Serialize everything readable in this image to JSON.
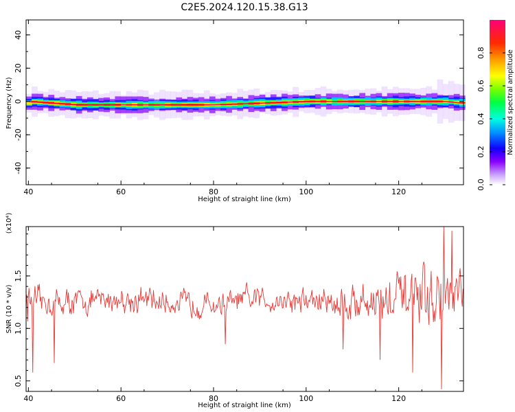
{
  "figure_title": "C2E5.2024.120.15.38.G13",
  "chart_data": [
    {
      "type": "heatmap",
      "xlabel": "Height of straight line (km)",
      "ylabel": "Frequency (Hz)",
      "xlim": [
        39.5,
        134
      ],
      "ylim": [
        -50,
        49
      ],
      "x_ticks": [
        40,
        60,
        80,
        100,
        120
      ],
      "y_ticks": [
        -40,
        -20,
        0,
        20,
        40
      ],
      "colorbar": {
        "label": "Normalized spectral amplitude",
        "range": [
          0,
          1
        ],
        "ticks": [
          "0.0",
          "0.2",
          "0.4",
          "0.6",
          "0.8"
        ],
        "colormap": "rainbow (white-purple-blue-cyan-green-yellow-orange-red-magenta)"
      },
      "trace": {
        "description_values": "narrow band centered near 0 Hz across all heights, strongest (red) near 0 Hz, faint spread to about +/-8 Hz",
        "center_hz": [
          [
            40,
            0
          ],
          [
            50,
            -2
          ],
          [
            60,
            -2
          ],
          [
            70,
            -2
          ],
          [
            80,
            -2
          ],
          [
            90,
            -1
          ],
          [
            100,
            0
          ],
          [
            110,
            0
          ],
          [
            120,
            0
          ],
          [
            130,
            0
          ],
          [
            134,
            -1
          ]
        ]
      }
    },
    {
      "type": "line",
      "xlabel": "Height of straight line (km)",
      "ylabel": "SNR (10 * v/v)",
      "y_multiplier": "(x10⁴)",
      "xlim": [
        39.5,
        134
      ],
      "ylim": [
        0.4,
        1.97
      ],
      "x_ticks": [
        40,
        60,
        80,
        100,
        120
      ],
      "y_ticks": [
        "0.5",
        "1.0",
        "1.5"
      ],
      "color": "#e53935",
      "envelope": {
        "x": [
          40,
          50,
          60,
          70,
          80,
          90,
          100,
          110,
          120,
          130,
          134
        ],
        "mean": [
          1.25,
          1.25,
          1.28,
          1.25,
          1.22,
          1.28,
          1.26,
          1.25,
          1.28,
          1.28,
          1.3
        ],
        "amplitude": [
          0.18,
          0.16,
          0.16,
          0.15,
          0.15,
          0.16,
          0.16,
          0.24,
          0.3,
          0.36,
          0.3
        ]
      },
      "extremes": [
        {
          "x": 41,
          "y": 0.58
        },
        {
          "x": 45.5,
          "y": 0.67
        },
        {
          "x": 82.5,
          "y": 0.85
        },
        {
          "x": 108,
          "y": 0.8
        },
        {
          "x": 116,
          "y": 0.7
        },
        {
          "x": 123,
          "y": 0.58
        },
        {
          "x": 129.2,
          "y": 0.42
        },
        {
          "x": 129.7,
          "y": 1.98
        },
        {
          "x": 131.5,
          "y": 1.93
        }
      ]
    }
  ]
}
